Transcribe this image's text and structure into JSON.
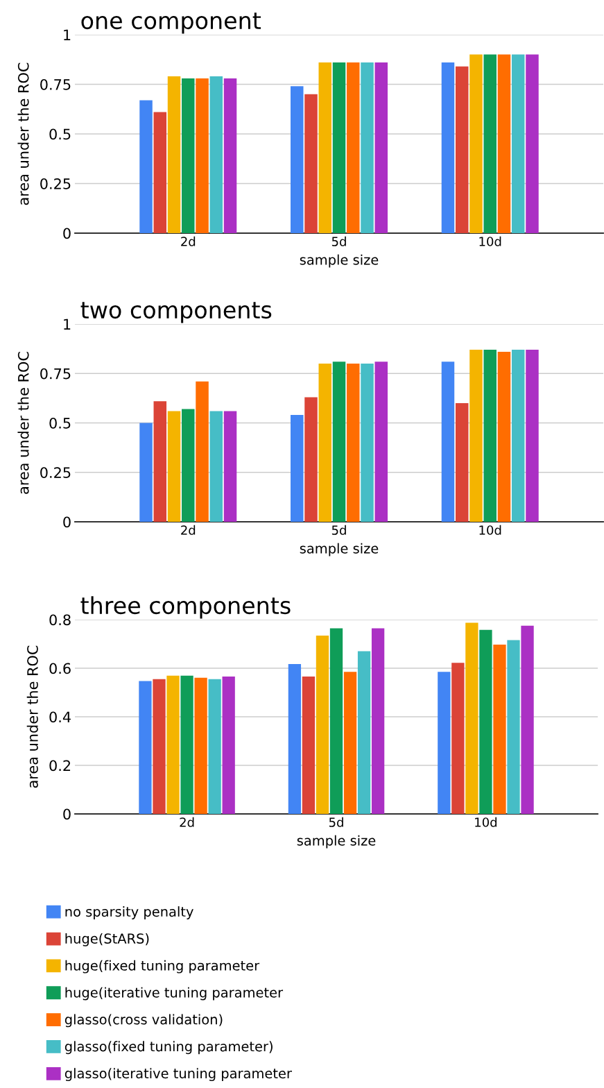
{
  "chart_data": [
    {
      "type": "bar",
      "title": "one component",
      "xlabel": "sample size",
      "ylabel": "area under the ROC",
      "categories": [
        "2d",
        "5d",
        "10d"
      ],
      "ylim": [
        0,
        1
      ],
      "yticks": [
        0,
        0.25,
        0.5,
        0.75,
        1
      ],
      "grid": "y",
      "series": [
        {
          "color": "#4285f4",
          "values": [
            0.67,
            0.74,
            0.86
          ]
        },
        {
          "color": "#db4437",
          "values": [
            0.61,
            0.7,
            0.84
          ]
        },
        {
          "color": "#f4b400",
          "values": [
            0.79,
            0.86,
            0.9
          ]
        },
        {
          "color": "#0f9d58",
          "values": [
            0.78,
            0.86,
            0.9
          ]
        },
        {
          "color": "#ff6d01",
          "values": [
            0.78,
            0.86,
            0.9
          ]
        },
        {
          "color": "#46bdc6",
          "values": [
            0.79,
            0.86,
            0.9
          ]
        },
        {
          "color": "#ab30c4",
          "values": [
            0.78,
            0.86,
            0.9
          ]
        }
      ]
    },
    {
      "type": "bar",
      "title": "two components",
      "xlabel": "sample size",
      "ylabel": "area under the ROC",
      "categories": [
        "2d",
        "5d",
        "10d"
      ],
      "ylim": [
        0,
        1
      ],
      "yticks": [
        0,
        0.25,
        0.5,
        0.75,
        1
      ],
      "grid": "y",
      "series": [
        {
          "color": "#4285f4",
          "values": [
            0.5,
            0.54,
            0.81
          ]
        },
        {
          "color": "#db4437",
          "values": [
            0.61,
            0.63,
            0.6
          ]
        },
        {
          "color": "#f4b400",
          "values": [
            0.56,
            0.8,
            0.87
          ]
        },
        {
          "color": "#0f9d58",
          "values": [
            0.57,
            0.81,
            0.87
          ]
        },
        {
          "color": "#ff6d01",
          "values": [
            0.71,
            0.8,
            0.86
          ]
        },
        {
          "color": "#46bdc6",
          "values": [
            0.56,
            0.8,
            0.87
          ]
        },
        {
          "color": "#ab30c4",
          "values": [
            0.56,
            0.81,
            0.87
          ]
        }
      ]
    },
    {
      "type": "bar",
      "title": "three components",
      "xlabel": "sample size",
      "ylabel": "area under the ROC",
      "categories": [
        "2d",
        "5d",
        "10d"
      ],
      "ylim": [
        0,
        0.8
      ],
      "yticks": [
        0,
        0.2,
        0.4,
        0.6,
        0.8
      ],
      "grid": "y",
      "legend": "bottom",
      "series": [
        {
          "name": "no sparsity penalty",
          "color": "#4285f4",
          "values": [
            0.547,
            0.617,
            0.585
          ]
        },
        {
          "name": "huge(StARS)",
          "color": "#db4437",
          "values": [
            0.555,
            0.566,
            0.622
          ]
        },
        {
          "name": "huge(fixed tuning parameter",
          "color": "#f4b400",
          "values": [
            0.569,
            0.734,
            0.787
          ]
        },
        {
          "name": "huge(iterative tuning parameter",
          "color": "#0f9d58",
          "values": [
            0.569,
            0.764,
            0.758
          ]
        },
        {
          "name": "glasso(cross validation)",
          "color": "#ff6d01",
          "values": [
            0.561,
            0.585,
            0.697
          ]
        },
        {
          "name": "glasso(fixed tuning parameter)",
          "color": "#46bdc6",
          "values": [
            0.555,
            0.67,
            0.716
          ]
        },
        {
          "name": "glasso(iterative tuning parameter",
          "color": "#ab30c4",
          "values": [
            0.566,
            0.764,
            0.775
          ]
        }
      ]
    }
  ]
}
